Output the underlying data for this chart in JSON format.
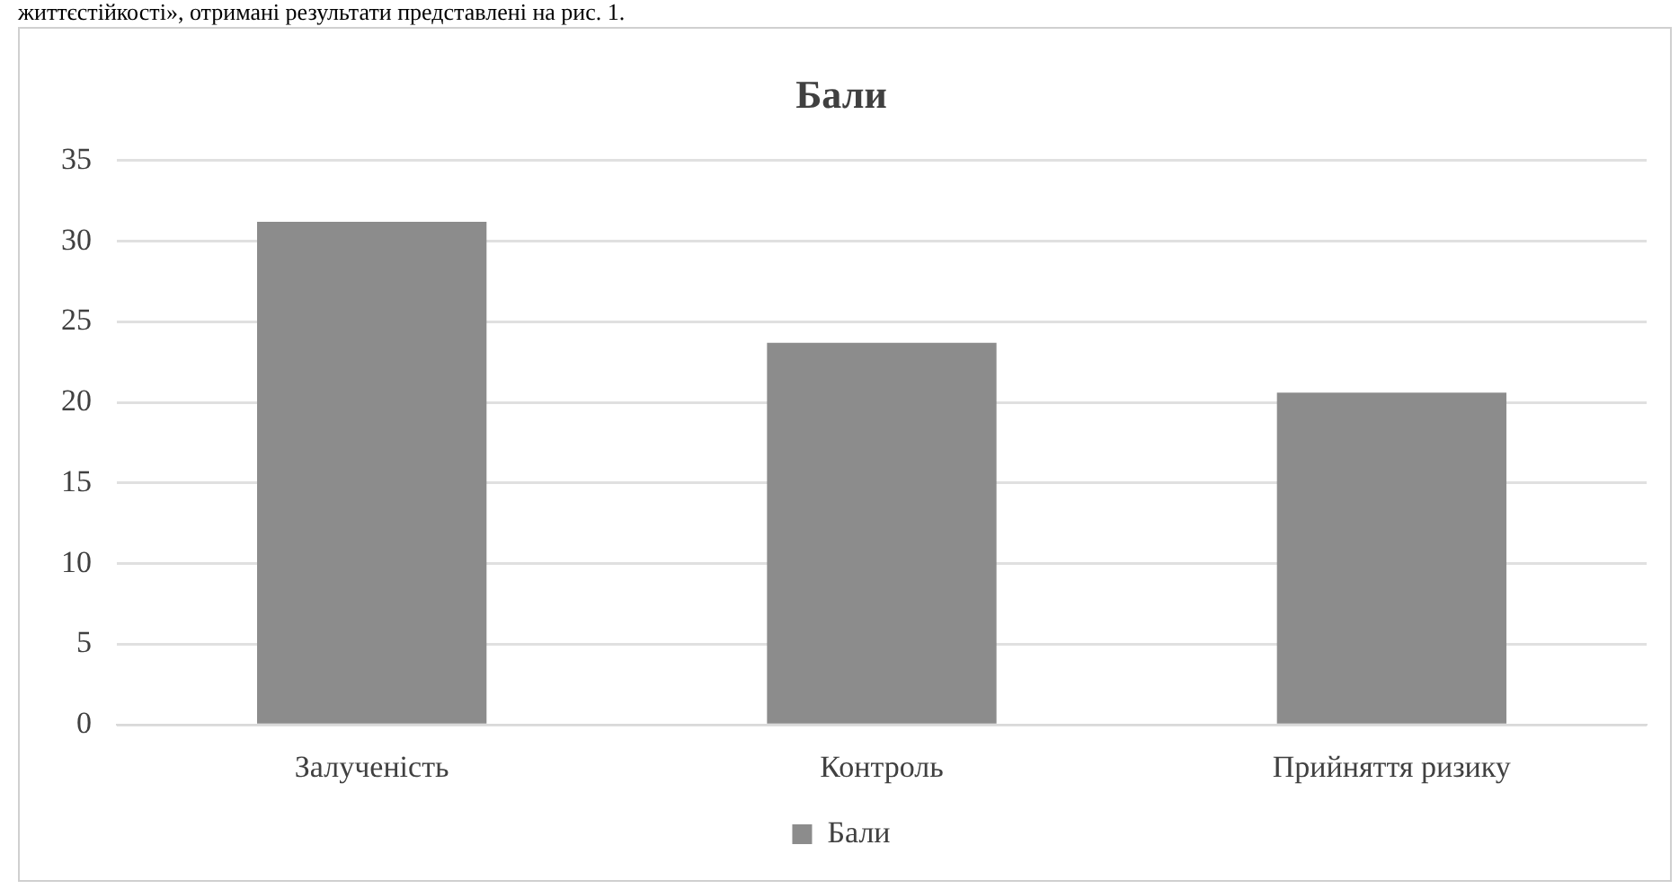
{
  "chart_data": {
    "type": "bar",
    "title": "Бали",
    "categories": [
      "Залученість",
      "Контроль",
      "Прийняття ризику"
    ],
    "series": [
      {
        "name": "Бали",
        "color": "#8c8c8c",
        "values": [
          31.2,
          23.7,
          20.6
        ]
      }
    ],
    "ylim": [
      0,
      35
    ],
    "yticks": [
      0,
      5,
      10,
      15,
      20,
      25,
      30,
      35
    ],
    "grid": "y",
    "legend": "bottom",
    "annotations": [
      "життєстійкості», отримані результати представлені на рис. 1."
    ]
  }
}
